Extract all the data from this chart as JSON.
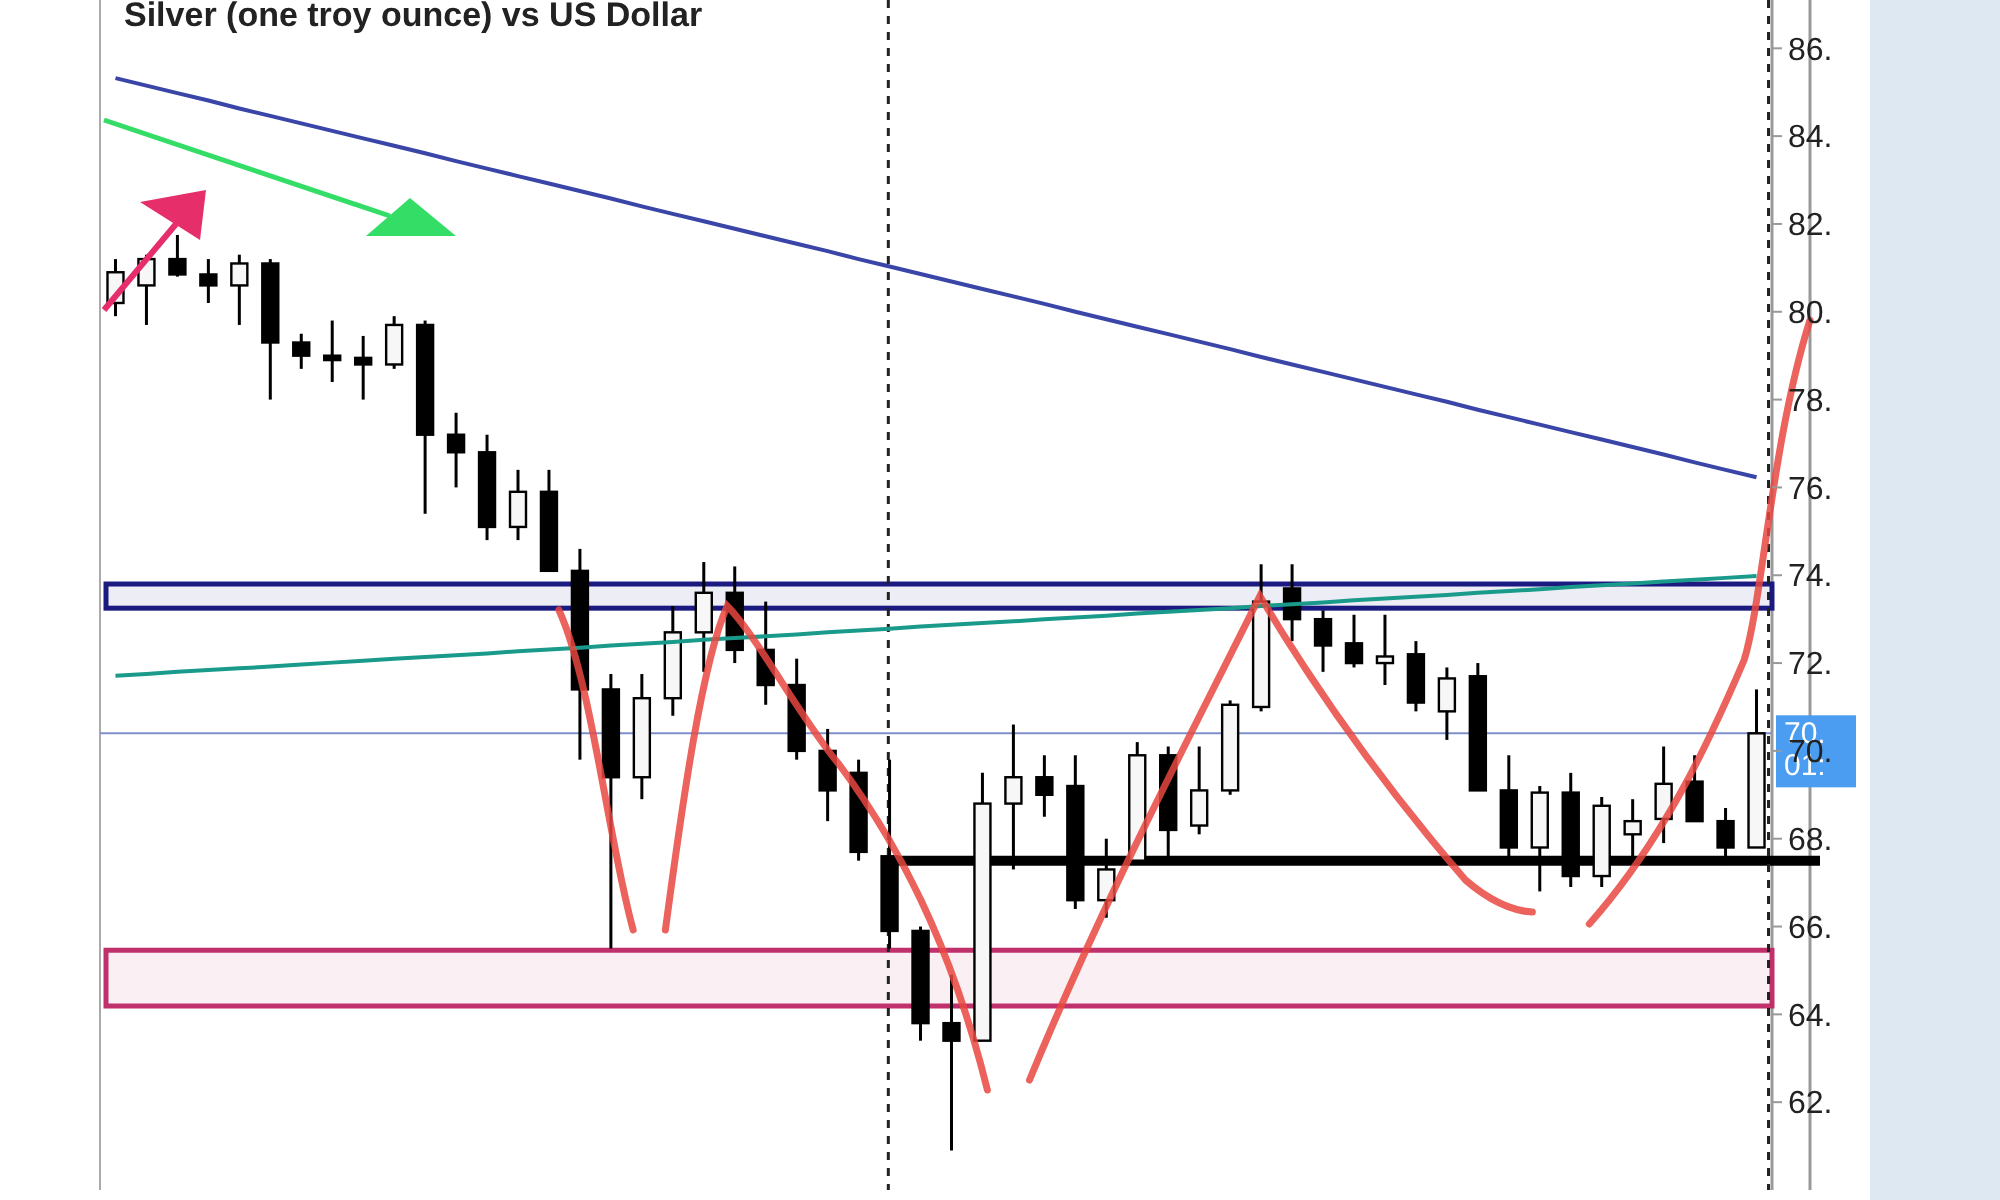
{
  "chart_data": {
    "type": "candlestick",
    "title": "Silver (one troy ounce) vs US Dollar",
    "categories": [
      null,
      null,
      null,
      null,
      null,
      null,
      null,
      null,
      null,
      null,
      null,
      null,
      null,
      null,
      null,
      null,
      null,
      null,
      null,
      null,
      null,
      null,
      null,
      null,
      null,
      null,
      null,
      null,
      null,
      null,
      null,
      null,
      null,
      null,
      null,
      null,
      null,
      null,
      null,
      null,
      null,
      null,
      null,
      null,
      null,
      null,
      null,
      null,
      null,
      null,
      null,
      null,
      null,
      null
    ],
    "ohlc": [
      [
        80.2,
        81.2,
        79.9,
        80.9
      ],
      [
        80.6,
        81.3,
        79.7,
        81.2
      ],
      [
        81.2,
        81.75,
        80.8,
        80.85
      ],
      [
        80.85,
        81.2,
        80.2,
        80.6
      ],
      [
        80.6,
        81.3,
        79.7,
        81.1
      ],
      [
        81.1,
        81.2,
        78.0,
        79.3
      ],
      [
        79.3,
        79.5,
        78.7,
        79.0
      ],
      [
        79.0,
        79.8,
        78.4,
        78.9
      ],
      [
        78.95,
        79.45,
        78.0,
        78.8
      ],
      [
        78.8,
        79.9,
        78.7,
        79.7
      ],
      [
        79.7,
        79.8,
        75.4,
        77.2
      ],
      [
        77.2,
        77.7,
        76.0,
        76.8
      ],
      [
        76.8,
        77.2,
        74.8,
        75.1
      ],
      [
        75.1,
        76.4,
        74.8,
        75.9
      ],
      [
        75.9,
        76.4,
        74.1,
        74.1
      ],
      [
        74.1,
        74.6,
        69.8,
        71.4
      ],
      [
        71.4,
        71.75,
        65.5,
        69.4
      ],
      [
        69.4,
        71.75,
        68.9,
        71.2
      ],
      [
        71.2,
        73.3,
        70.8,
        72.7
      ],
      [
        72.7,
        74.3,
        71.8,
        73.6
      ],
      [
        73.6,
        74.2,
        72.0,
        72.3
      ],
      [
        72.3,
        73.4,
        71.05,
        71.5
      ],
      [
        71.5,
        72.1,
        69.8,
        70.0
      ],
      [
        70.0,
        70.5,
        68.4,
        69.1
      ],
      [
        69.5,
        69.8,
        67.5,
        67.7
      ],
      [
        67.6,
        69.8,
        65.5,
        65.9
      ],
      [
        65.9,
        66.0,
        63.4,
        63.8
      ],
      [
        63.8,
        64.9,
        60.9,
        63.4
      ],
      [
        63.4,
        69.5,
        63.4,
        68.8
      ],
      [
        68.8,
        70.6,
        67.3,
        69.4
      ],
      [
        69.4,
        69.9,
        68.5,
        69.0
      ],
      [
        69.2,
        69.9,
        66.4,
        66.6
      ],
      [
        66.6,
        68.0,
        66.2,
        67.3
      ],
      [
        67.5,
        70.2,
        67.5,
        69.9
      ],
      [
        69.9,
        70.1,
        67.6,
        68.2
      ],
      [
        68.3,
        70.1,
        68.1,
        69.1
      ],
      [
        69.1,
        71.15,
        69.0,
        71.05
      ],
      [
        71.0,
        74.25,
        70.9,
        73.4
      ],
      [
        73.7,
        74.25,
        72.5,
        73.0
      ],
      [
        73.0,
        73.2,
        71.8,
        72.4
      ],
      [
        72.45,
        73.1,
        71.9,
        72.0
      ],
      [
        72.0,
        73.1,
        71.5,
        72.15
      ],
      [
        72.2,
        72.5,
        70.9,
        71.1
      ],
      [
        70.9,
        71.9,
        70.25,
        71.65
      ],
      [
        71.7,
        72.0,
        69.1,
        69.1
      ],
      [
        69.1,
        69.9,
        67.6,
        67.8
      ],
      [
        67.8,
        69.2,
        66.8,
        69.05
      ],
      [
        69.05,
        69.5,
        66.9,
        67.15
      ],
      [
        67.15,
        68.95,
        66.9,
        68.75
      ],
      [
        68.1,
        68.9,
        67.6,
        68.4
      ],
      [
        68.45,
        70.1,
        67.9,
        69.25
      ],
      [
        69.3,
        69.9,
        68.4,
        68.4
      ],
      [
        68.4,
        68.7,
        67.4,
        67.8
      ],
      [
        67.8,
        71.4,
        67.8,
        70.4
      ]
    ],
    "series": [
      {
        "type": "line",
        "color": "#3a45a8",
        "values": [
          85.32,
          85.15,
          84.98,
          84.81,
          84.63,
          84.46,
          84.29,
          84.12,
          83.95,
          83.78,
          83.61,
          83.43,
          83.26,
          83.09,
          82.92,
          82.75,
          82.58,
          82.4,
          82.23,
          82.06,
          81.89,
          81.72,
          81.55,
          81.38,
          81.2,
          81.03,
          80.86,
          80.69,
          80.52,
          80.35,
          80.18,
          80.0,
          79.83,
          79.66,
          79.49,
          79.32,
          79.15,
          78.97,
          78.8,
          78.63,
          78.46,
          78.29,
          78.12,
          77.95,
          77.77,
          77.6,
          77.43,
          77.26,
          77.09,
          76.92,
          76.75,
          76.57,
          76.4,
          76.23
        ]
      },
      {
        "type": "line",
        "color": "#1a9a8a",
        "values": [
          71.71,
          71.75,
          71.8,
          71.84,
          71.88,
          71.92,
          71.97,
          72.01,
          72.05,
          72.1,
          72.14,
          72.18,
          72.22,
          72.27,
          72.31,
          72.35,
          72.4,
          72.44,
          72.48,
          72.53,
          72.57,
          72.61,
          72.65,
          72.7,
          72.74,
          72.78,
          72.83,
          72.87,
          72.91,
          72.95,
          73.0,
          73.04,
          73.08,
          73.13,
          73.17,
          73.21,
          73.25,
          73.3,
          73.34,
          73.38,
          73.43,
          73.47,
          73.51,
          73.55,
          73.6,
          73.64,
          73.68,
          73.73,
          73.77,
          73.81,
          73.86,
          73.9,
          73.94,
          73.98
        ]
      }
    ],
    "ylim": [
      60,
      87.1
    ],
    "yticks": [
      {
        "value": 86,
        "label": "86."
      },
      {
        "value": 84,
        "label": "84."
      },
      {
        "value": 82,
        "label": "82."
      },
      {
        "value": 80,
        "label": "80."
      },
      {
        "value": 78,
        "label": "78."
      },
      {
        "value": 76,
        "label": "76."
      },
      {
        "value": 74,
        "label": "74."
      },
      {
        "value": 72,
        "label": "72."
      },
      {
        "value": 70,
        "label": "70."
      },
      {
        "value": 68,
        "label": "68."
      },
      {
        "value": 66,
        "label": "66."
      },
      {
        "value": 64,
        "label": "64."
      },
      {
        "value": 62,
        "label": "62."
      }
    ],
    "ref_lines": [
      {
        "axis": "y",
        "value": 70.4,
        "label": "70. 01:",
        "color": "#7f8fcc"
      },
      {
        "axis": "y",
        "value": 67.5,
        "color": "#000000"
      }
    ],
    "bands": [
      {
        "axis": "y",
        "from": 73.25,
        "to": 73.8,
        "color": "#1a1a80"
      },
      {
        "axis": "y",
        "from": 64.19,
        "to": 65.46,
        "color": "#c0306a"
      }
    ]
  }
}
